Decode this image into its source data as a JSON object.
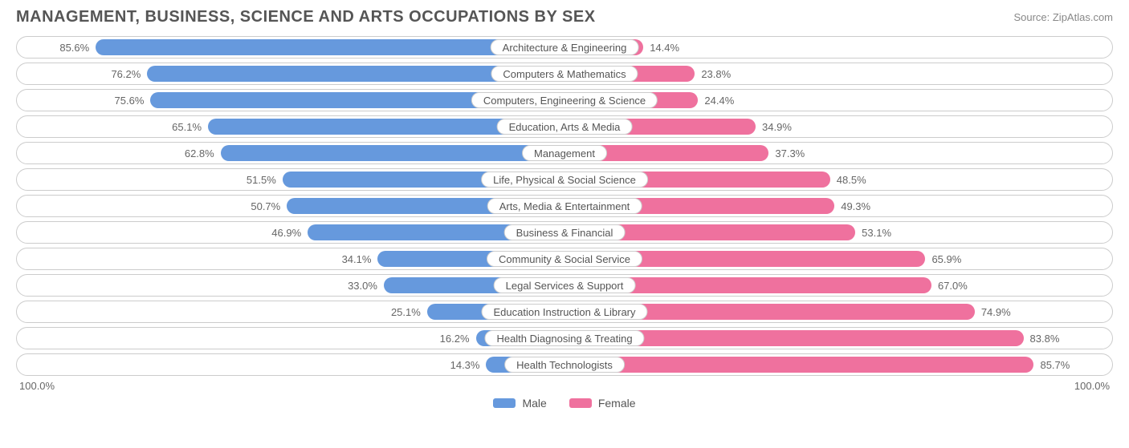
{
  "title": "MANAGEMENT, BUSINESS, SCIENCE AND ARTS OCCUPATIONS BY SEX",
  "source": "Source: ZipAtlas.com",
  "type": "diverging-bar",
  "colors": {
    "male": "#6699dd",
    "female": "#ef719e",
    "border": "#cccccc",
    "text": "#666666",
    "background": "#ffffff"
  },
  "axis": {
    "left_label": "100.0%",
    "right_label": "100.0%",
    "max_pct": 100.0
  },
  "legend": {
    "male_label": "Male",
    "female_label": "Female"
  },
  "rows": [
    {
      "category": "Architecture & Engineering",
      "male": 85.6,
      "female": 14.4,
      "male_label": "85.6%",
      "female_label": "14.4%"
    },
    {
      "category": "Computers & Mathematics",
      "male": 76.2,
      "female": 23.8,
      "male_label": "76.2%",
      "female_label": "23.8%"
    },
    {
      "category": "Computers, Engineering & Science",
      "male": 75.6,
      "female": 24.4,
      "male_label": "75.6%",
      "female_label": "24.4%"
    },
    {
      "category": "Education, Arts & Media",
      "male": 65.1,
      "female": 34.9,
      "male_label": "65.1%",
      "female_label": "34.9%"
    },
    {
      "category": "Management",
      "male": 62.8,
      "female": 37.3,
      "male_label": "62.8%",
      "female_label": "37.3%"
    },
    {
      "category": "Life, Physical & Social Science",
      "male": 51.5,
      "female": 48.5,
      "male_label": "51.5%",
      "female_label": "48.5%"
    },
    {
      "category": "Arts, Media & Entertainment",
      "male": 50.7,
      "female": 49.3,
      "male_label": "50.7%",
      "female_label": "49.3%"
    },
    {
      "category": "Business & Financial",
      "male": 46.9,
      "female": 53.1,
      "male_label": "46.9%",
      "female_label": "53.1%"
    },
    {
      "category": "Community & Social Service",
      "male": 34.1,
      "female": 65.9,
      "male_label": "34.1%",
      "female_label": "65.9%"
    },
    {
      "category": "Legal Services & Support",
      "male": 33.0,
      "female": 67.0,
      "male_label": "33.0%",
      "female_label": "67.0%"
    },
    {
      "category": "Education Instruction & Library",
      "male": 25.1,
      "female": 74.9,
      "male_label": "25.1%",
      "female_label": "74.9%"
    },
    {
      "category": "Health Diagnosing & Treating",
      "male": 16.2,
      "female": 83.8,
      "male_label": "16.2%",
      "female_label": "83.8%"
    },
    {
      "category": "Health Technologists",
      "male": 14.3,
      "female": 85.7,
      "male_label": "14.3%",
      "female_label": "85.7%"
    }
  ]
}
